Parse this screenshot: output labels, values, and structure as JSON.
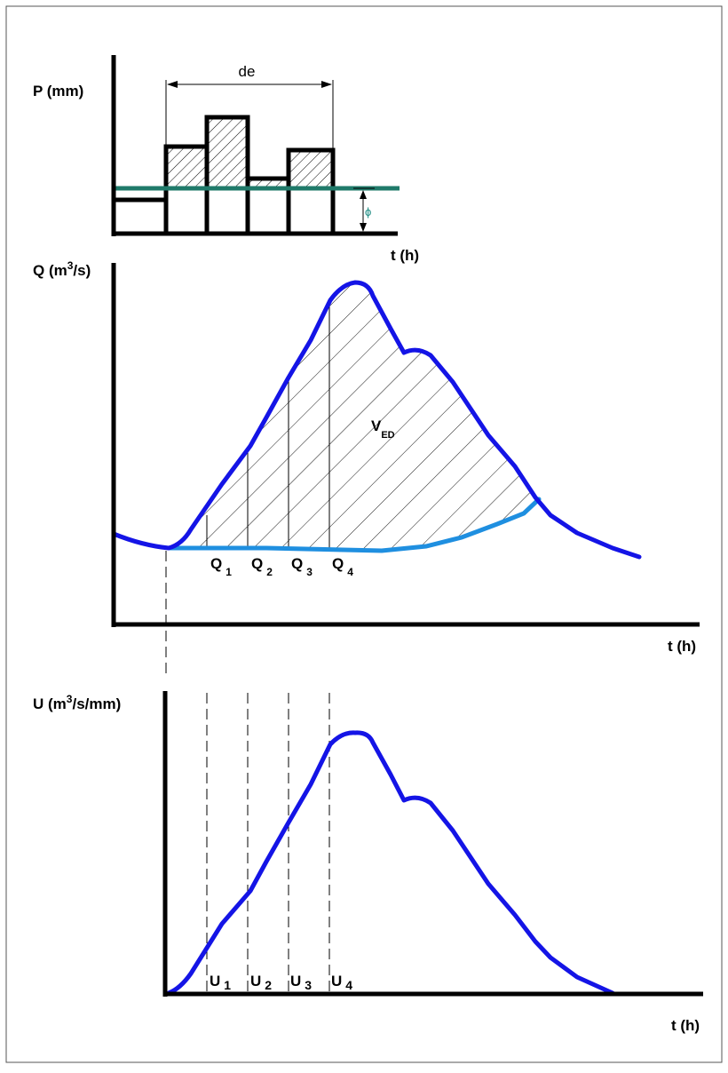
{
  "hyetograph": {
    "y_label": "P (mm)",
    "x_label": "t (h)",
    "duration_label": "de",
    "index_label": "ϕ",
    "index_color": "#1f7a6a"
  },
  "hydrograph": {
    "y_label_main": "Q (m",
    "y_label_sup": "3",
    "y_label_tail": "/s)",
    "x_label": "t (h)",
    "volume_label": "V",
    "volume_sub": "ED",
    "ordinates": [
      {
        "main": "Q",
        "sub": "1"
      },
      {
        "main": "Q",
        "sub": "2"
      },
      {
        "main": "Q",
        "sub": "3"
      },
      {
        "main": "Q",
        "sub": "4"
      }
    ],
    "curve_color": "#1414e6",
    "baseflow_color": "#1f8fe0"
  },
  "unit_hydrograph": {
    "y_label_main": "U (m",
    "y_label_sup": "3",
    "y_label_tail": "/s/mm)",
    "x_label": "t (h)",
    "ordinates": [
      {
        "main": "U",
        "sub": "1"
      },
      {
        "main": "U",
        "sub": "2"
      },
      {
        "main": "U",
        "sub": "3"
      },
      {
        "main": "U",
        "sub": "4"
      }
    ],
    "curve_color": "#1414e6"
  }
}
